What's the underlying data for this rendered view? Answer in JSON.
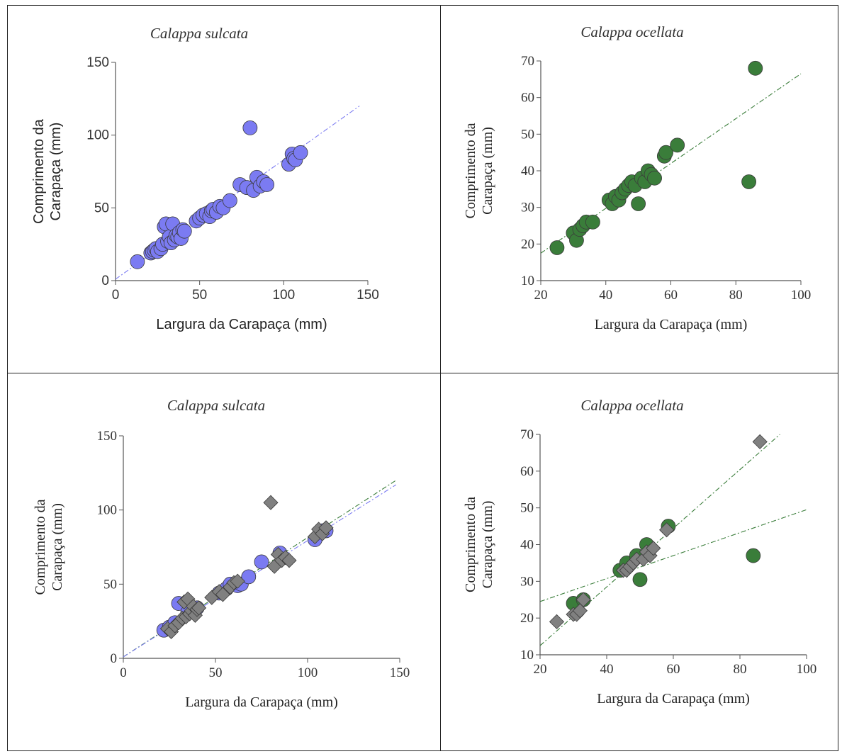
{
  "chart_data": [
    {
      "type": "scatter",
      "title": "Calappa sulcata",
      "xlabel": "Largura da Carapaça (mm)",
      "ylabel_lines": [
        "Comprimento da",
        "Carapaça (mm)"
      ],
      "xlim": [
        0,
        150
      ],
      "ylim": [
        0,
        150
      ],
      "xticks": [
        0,
        50,
        100,
        150
      ],
      "yticks": [
        0,
        50,
        100,
        150
      ],
      "series": [
        {
          "marker": "circle",
          "color": "#7b7bf2",
          "x": [
            13,
            21,
            22,
            23,
            24,
            25,
            27,
            28,
            29,
            30,
            31,
            32,
            33,
            34,
            35,
            36,
            37,
            38,
            39,
            40,
            41,
            48,
            50,
            52,
            54,
            56,
            57,
            58,
            60,
            62,
            64,
            68,
            74,
            78,
            80,
            82,
            84,
            86,
            88,
            90,
            103,
            105,
            106,
            107,
            110
          ],
          "y": [
            13,
            19,
            20,
            21,
            22,
            20,
            22,
            25,
            37,
            39,
            27,
            30,
            26,
            39,
            28,
            31,
            30,
            33,
            29,
            35,
            34,
            41,
            43,
            45,
            46,
            44,
            48,
            49,
            47,
            51,
            50,
            55,
            66,
            64,
            105,
            62,
            71,
            65,
            68,
            66,
            80,
            87,
            84,
            83,
            88
          ]
        }
      ],
      "fit_lines": [
        {
          "color": "#7b7bf2",
          "x": [
            0,
            145
          ],
          "y": [
            1,
            120
          ]
        }
      ]
    },
    {
      "type": "scatter",
      "title": "Calappa ocellata",
      "xlabel": "Largura da Carapaça (mm)",
      "ylabel_lines": [
        "Comprimento da",
        "Carapaça (mm)"
      ],
      "xlim": [
        20,
        100
      ],
      "ylim": [
        10,
        70
      ],
      "xticks": [
        20,
        40,
        60,
        80,
        100
      ],
      "yticks": [
        10,
        20,
        30,
        40,
        50,
        60,
        70
      ],
      "series": [
        {
          "marker": "circle",
          "color": "#3a7d3a",
          "x": [
            25,
            30,
            31,
            32,
            33,
            34,
            36,
            41,
            42,
            43,
            44,
            45,
            46,
            47,
            48,
            49,
            50,
            51,
            52,
            53,
            54,
            55,
            58,
            58.5,
            62,
            84,
            86
          ],
          "y": [
            19,
            23,
            21,
            24,
            25,
            26,
            26,
            32,
            31,
            33,
            32,
            34,
            35,
            36,
            37,
            36,
            31,
            38,
            37,
            40,
            39,
            38,
            44,
            45,
            47,
            37,
            68
          ]
        }
      ],
      "fit_lines": [
        {
          "color": "#3a7d3a",
          "x": [
            20,
            100
          ],
          "y": [
            17.5,
            66.5
          ]
        }
      ]
    },
    {
      "type": "scatter",
      "title": "Calappa sulcata",
      "xlabel": "Largura da Carapaça (mm)",
      "ylabel_lines": [
        "Comprimento da",
        "Carapaça (mm)"
      ],
      "xlim": [
        0,
        150
      ],
      "ylim": [
        0,
        150
      ],
      "xticks": [
        0,
        50,
        100,
        150
      ],
      "yticks": [
        0,
        50,
        100,
        150
      ],
      "series": [
        {
          "marker": "circle",
          "color": "#7b7bf2",
          "x": [
            22,
            25,
            28,
            30,
            35,
            40,
            52,
            56,
            58,
            62,
            64,
            68,
            75,
            85,
            104,
            108,
            110
          ],
          "y": [
            19,
            21,
            24,
            37,
            31,
            34,
            44,
            47,
            50,
            49,
            50,
            55,
            65,
            71,
            80,
            86,
            86
          ]
        },
        {
          "marker": "diamond",
          "color": "#808080",
          "x": [
            24,
            26,
            28,
            30,
            32,
            33,
            34,
            35,
            36,
            37,
            38,
            39,
            40,
            41,
            48,
            52,
            54,
            58,
            60,
            62,
            80,
            82,
            84,
            86,
            88,
            90,
            104,
            106,
            108,
            110
          ],
          "y": [
            20,
            18,
            22,
            24,
            27,
            38,
            28,
            40,
            30,
            32,
            35,
            29,
            33,
            34,
            41,
            45,
            43,
            48,
            51,
            52,
            105,
            62,
            70,
            66,
            68,
            66,
            82,
            87,
            84,
            88
          ]
        }
      ],
      "fit_lines": [
        {
          "color": "#3a7d3a",
          "x": [
            0,
            148
          ],
          "y": [
            1,
            120
          ]
        },
        {
          "color": "#7b7bf2",
          "x": [
            0,
            148
          ],
          "y": [
            1,
            117
          ]
        }
      ]
    },
    {
      "type": "scatter",
      "title": "Calappa ocellata",
      "xlabel": "Largura da Carapaça (mm)",
      "ylabel_lines": [
        "Comprimento da",
        "Carapaça (mm)"
      ],
      "xlim": [
        20,
        100
      ],
      "ylim": [
        10,
        70
      ],
      "xticks": [
        20,
        40,
        60,
        80,
        100
      ],
      "yticks": [
        10,
        20,
        30,
        40,
        50,
        60,
        70
      ],
      "series": [
        {
          "marker": "circle",
          "color": "#3a7d3a",
          "x": [
            30,
            33,
            44,
            46,
            49,
            50,
            52,
            58.5,
            84
          ],
          "y": [
            24,
            25,
            33,
            35,
            37,
            30.5,
            40,
            45,
            37
          ]
        },
        {
          "marker": "diamond",
          "color": "#808080",
          "x": [
            25,
            30,
            31,
            32,
            33,
            45,
            46,
            47,
            48,
            49,
            51,
            52,
            53,
            54,
            58,
            86
          ],
          "y": [
            19,
            21,
            21,
            22,
            25,
            33,
            33,
            34,
            35,
            36,
            36,
            38,
            37,
            39,
            44,
            68
          ]
        }
      ],
      "fit_lines": [
        {
          "color": "#3a7d3a",
          "x": [
            20,
            92
          ],
          "y": [
            12.5,
            70
          ]
        },
        {
          "color": "#3a7d3a",
          "x": [
            20,
            100
          ],
          "y": [
            24.5,
            49.5
          ]
        }
      ]
    }
  ]
}
